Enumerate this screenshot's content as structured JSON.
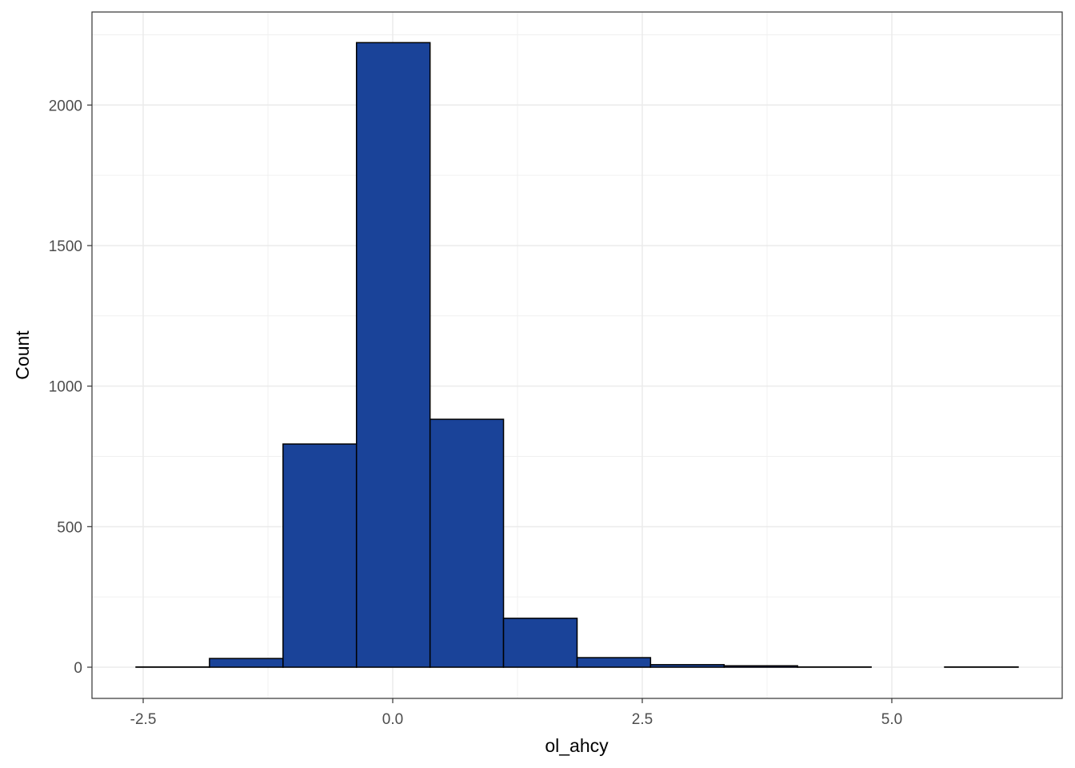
{
  "chart_data": {
    "type": "histogram",
    "x_label": "ol_ahcy",
    "y_label": "Count",
    "bins": [
      -2.572,
      -1.836,
      -1.099,
      -0.363,
      0.374,
      1.11,
      1.847,
      2.583,
      3.32,
      4.056,
      4.793,
      5.529,
      6.266
    ],
    "values": [
      1,
      31,
      794,
      2222,
      882,
      174,
      34,
      9,
      5,
      1,
      0,
      1
    ],
    "color": "#1a4399",
    "edgecolor": "#000000",
    "xlim": [
      -3.013,
      6.707
    ],
    "ylim": [
      -111,
      2331
    ],
    "xticks": [
      -2.5,
      {
        "value": 0,
        "label": "0.0"
      },
      2.5,
      {
        "value": 5,
        "label": "5.0"
      }
    ],
    "yticks": [
      0,
      500,
      1000,
      1500,
      2000
    ],
    "xminor": [
      -1.25,
      1.25,
      3.75
    ],
    "yminor": [
      250,
      750,
      1250,
      1750,
      2250
    ],
    "grid": true
  }
}
